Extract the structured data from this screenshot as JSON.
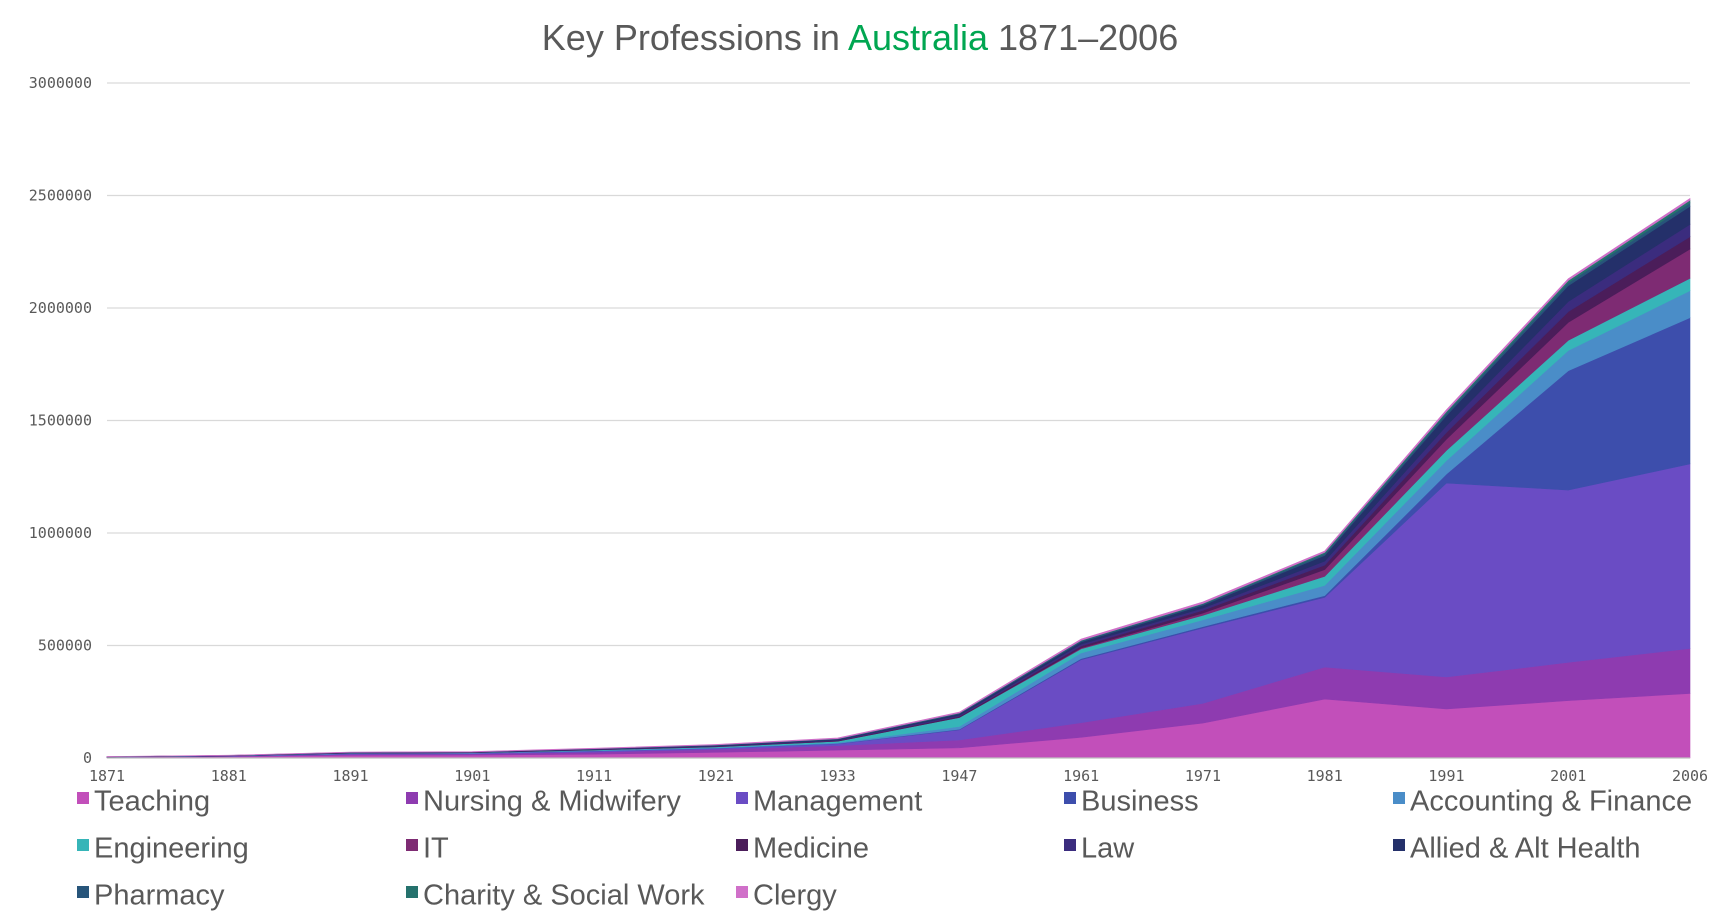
{
  "chart_data": {
    "type": "area",
    "stacked": true,
    "title_parts": [
      "Key Professions in ",
      "Australia",
      " 1871–2006"
    ],
    "title_accent_color": "#00a651",
    "xlabel": "",
    "ylabel": "",
    "ylim": [
      0,
      3000000
    ],
    "y_ticks": [
      0,
      500000,
      1000000,
      1500000,
      2000000,
      2500000,
      3000000
    ],
    "y_tick_labels": [
      "0",
      "500000",
      "1000000",
      "1500000",
      "2000000",
      "2500000",
      "3000000"
    ],
    "x": [
      1871,
      1881,
      1891,
      1901,
      1911,
      1921,
      1933,
      1947,
      1961,
      1971,
      1981,
      1991,
      2001,
      2006
    ],
    "x_tick_labels": [
      "1871",
      "1881",
      "1891",
      "1901",
      "1911",
      "1921",
      "1933",
      "1947",
      "1961",
      "1971",
      "1981",
      "1991",
      "2001",
      "2006"
    ],
    "grid": true,
    "legend_position": "bottom",
    "series": [
      {
        "name": "Teaching",
        "color": "#c24fba",
        "values": [
          3000,
          6000,
          12000,
          13000,
          17000,
          25000,
          35000,
          45000,
          92000,
          155000,
          262000,
          218000,
          255000,
          287000
        ]
      },
      {
        "name": "Nursing & Midwifery",
        "color": "#8e3bb0",
        "values": [
          1000,
          2000,
          4000,
          5000,
          9000,
          13000,
          20000,
          35000,
          65000,
          88000,
          142000,
          142000,
          170000,
          200000
        ]
      },
      {
        "name": "Management",
        "color": "#6a4cc4",
        "values": [
          500,
          1000,
          3000,
          3000,
          5000,
          5000,
          8000,
          45000,
          280000,
          335000,
          310000,
          862000,
          766000,
          820000
        ]
      },
      {
        "name": "Business",
        "color": "#3d4eac",
        "values": [
          100,
          200,
          500,
          500,
          800,
          1000,
          1500,
          3000,
          5000,
          6000,
          8000,
          40000,
          530000,
          650000
        ]
      },
      {
        "name": "Accounting & Finance",
        "color": "#4a8dc8",
        "values": [
          200,
          400,
          1000,
          1000,
          2000,
          2500,
          4000,
          12000,
          25000,
          30000,
          45000,
          60000,
          90000,
          120000
        ]
      },
      {
        "name": "Engineering",
        "color": "#36b5b8",
        "values": [
          100,
          200,
          1000,
          1000,
          2000,
          3000,
          6000,
          40000,
          18000,
          20000,
          40000,
          45000,
          45000,
          55000
        ]
      },
      {
        "name": "IT",
        "color": "#7e2b73",
        "values": [
          0,
          0,
          0,
          0,
          0,
          0,
          0,
          0,
          4000,
          10000,
          30000,
          50000,
          80000,
          130000
        ]
      },
      {
        "name": "Medicine",
        "color": "#4b1d5a",
        "values": [
          300,
          500,
          1000,
          1000,
          1500,
          2000,
          3000,
          5000,
          9000,
          12000,
          20000,
          30000,
          48000,
          55000
        ]
      },
      {
        "name": "Law",
        "color": "#3b2c7e",
        "values": [
          300,
          500,
          1500,
          1500,
          2000,
          2500,
          3000,
          5000,
          8000,
          10000,
          18000,
          30000,
          45000,
          55000
        ]
      },
      {
        "name": "Allied & Alt Health",
        "color": "#24306a",
        "values": [
          100,
          200,
          500,
          500,
          1000,
          2000,
          3000,
          6000,
          10000,
          13000,
          25000,
          45000,
          70000,
          80000
        ]
      },
      {
        "name": "Pharmacy",
        "color": "#27557a",
        "values": [
          200,
          300,
          500,
          500,
          1000,
          1500,
          2000,
          3000,
          5000,
          5000,
          8000,
          10000,
          13000,
          15000
        ]
      },
      {
        "name": "Charity & Social Work",
        "color": "#25726d",
        "values": [
          0,
          0,
          100,
          100,
          200,
          300,
          500,
          1000,
          2000,
          3000,
          6000,
          8000,
          10000,
          12000
        ]
      },
      {
        "name": "Clergy",
        "color": "#d070c9",
        "values": [
          1000,
          1200,
          1500,
          1500,
          2000,
          2500,
          3000,
          4000,
          6000,
          7000,
          6000,
          8000,
          8000,
          8000
        ]
      }
    ]
  }
}
